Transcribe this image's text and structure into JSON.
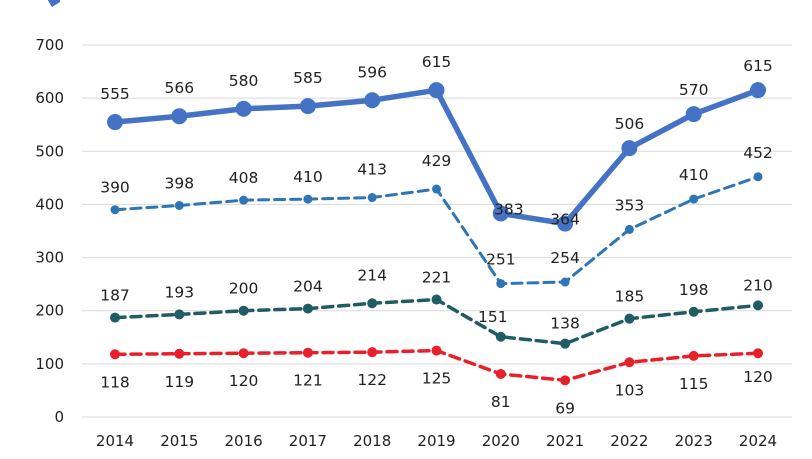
{
  "chart_data": {
    "type": "line",
    "categories": [
      "2014",
      "2015",
      "2016",
      "2017",
      "2018",
      "2019",
      "2020",
      "2021",
      "2022",
      "2023",
      "2024"
    ],
    "ylim": [
      0,
      700
    ],
    "y_ticks": [
      "0",
      "100",
      "200",
      "300",
      "400",
      "500",
      "600",
      "700"
    ],
    "grid": true,
    "legend": "top-left (partially visible marker)",
    "series": [
      {
        "values": [
          555,
          566,
          580,
          585,
          596,
          615,
          383,
          364,
          506,
          570,
          615
        ],
        "color": "#4472C4",
        "style": "solid"
      },
      {
        "values": [
          390,
          398,
          408,
          410,
          413,
          429,
          251,
          254,
          353,
          410,
          452
        ],
        "color": "#2E75B6",
        "style": "dashed"
      },
      {
        "values": [
          187,
          193,
          200,
          204,
          214,
          221,
          151,
          138,
          185,
          198,
          210
        ],
        "color": "#1F5C63",
        "style": "dashed"
      },
      {
        "values": [
          118,
          119,
          120,
          121,
          122,
          125,
          81,
          69,
          103,
          115,
          120
        ],
        "color": "#E8202A",
        "style": "dashed"
      }
    ]
  }
}
